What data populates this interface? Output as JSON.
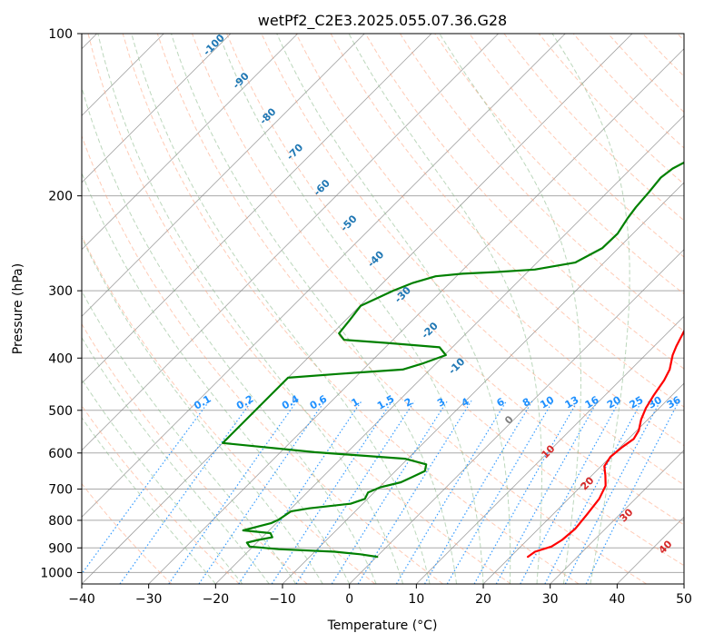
{
  "chart_data": {
    "type": "line",
    "title": "wetPf2_C2E3.2025.055.07.36.G28",
    "xlabel": "Temperature (°C)",
    "ylabel": "Pressure (hPa)",
    "xlim": [
      -40,
      50
    ],
    "ylim": [
      1050,
      100
    ],
    "y_scale": "log",
    "x_ticks": [
      "−40",
      "−30",
      "−20",
      "−10",
      "0",
      "10",
      "20",
      "30",
      "40",
      "50"
    ],
    "x_tick_values": [
      -40,
      -30,
      -20,
      -10,
      0,
      10,
      20,
      30,
      40,
      50
    ],
    "y_ticks": [
      "100",
      "200",
      "300",
      "400",
      "500",
      "600",
      "700",
      "800",
      "900",
      "1000"
    ],
    "y_tick_values": [
      100,
      200,
      300,
      400,
      500,
      600,
      700,
      800,
      900,
      1000
    ],
    "grid": true,
    "series": [
      {
        "role": "temperature",
        "color": "#ff0000",
        "points": [
          [
            22.6,
            935
          ],
          [
            22.9,
            915
          ],
          [
            24.6,
            895
          ],
          [
            25.2,
            870
          ],
          [
            25.5,
            830
          ],
          [
            25.1,
            780
          ],
          [
            24.6,
            730
          ],
          [
            23.6,
            690
          ],
          [
            22.0,
            660
          ],
          [
            20.5,
            635
          ],
          [
            20.0,
            610
          ],
          [
            20.3,
            585
          ],
          [
            20.8,
            565
          ],
          [
            20.3,
            545
          ],
          [
            19.0,
            520
          ],
          [
            18.0,
            495
          ],
          [
            17.3,
            470
          ],
          [
            16.6,
            440
          ],
          [
            15.8,
            420
          ],
          [
            14.1,
            395
          ],
          [
            13.3,
            380
          ],
          [
            11.9,
            350
          ],
          [
            10.9,
            320
          ],
          [
            9.7,
            295
          ],
          [
            7.6,
            275
          ],
          [
            5.7,
            255
          ],
          [
            3.6,
            235
          ],
          [
            3.3,
            215
          ],
          [
            3.3,
            190
          ],
          [
            3.8,
            160
          ],
          [
            4.5,
            135
          ],
          [
            5.6,
            120
          ],
          [
            6.2,
            108
          ],
          [
            7.0,
            100
          ]
        ]
      },
      {
        "role": "dewpoint",
        "color": "#008000",
        "points": [
          [
            0.1,
            935
          ],
          [
            -2.8,
            925
          ],
          [
            -7.0,
            915
          ],
          [
            -15.8,
            905
          ],
          [
            -20.5,
            895
          ],
          [
            -21.5,
            880
          ],
          [
            -20.2,
            870
          ],
          [
            -18.5,
            860
          ],
          [
            -19.4,
            845
          ],
          [
            -23.9,
            835
          ],
          [
            -22.1,
            820
          ],
          [
            -20.8,
            810
          ],
          [
            -20.2,
            798
          ],
          [
            -19.6,
            770
          ],
          [
            -17.3,
            760
          ],
          [
            -11.8,
            745
          ],
          [
            -10.4,
            730
          ],
          [
            -10.9,
            710
          ],
          [
            -9.9,
            695
          ],
          [
            -7.5,
            680
          ],
          [
            -6.6,
            665
          ],
          [
            -5.6,
            648
          ],
          [
            -6.4,
            630
          ],
          [
            -10.4,
            615
          ],
          [
            -24.9,
            598
          ],
          [
            -40.0,
            575
          ],
          [
            -40.0,
            435
          ],
          [
            -33.0,
            428
          ],
          [
            -24.1,
            420
          ],
          [
            -22.1,
            410
          ],
          [
            -19.8,
            395
          ],
          [
            -21.9,
            382
          ],
          [
            -30.4,
            375
          ],
          [
            -37.3,
            370
          ],
          [
            -39.0,
            360
          ],
          [
            -39.4,
            340
          ],
          [
            -39.9,
            320
          ],
          [
            -37.3,
            300
          ],
          [
            -35.5,
            290
          ],
          [
            -33.1,
            282
          ],
          [
            -29.5,
            279
          ],
          [
            -24.9,
            277
          ],
          [
            -19.3,
            274
          ],
          [
            -14.3,
            266
          ],
          [
            -12.4,
            250
          ],
          [
            -12.3,
            235
          ],
          [
            -13.1,
            220
          ],
          [
            -13.5,
            210
          ],
          [
            -13.8,
            197
          ],
          [
            -14.2,
            185
          ],
          [
            -13.8,
            178
          ],
          [
            -12.9,
            173
          ],
          [
            -10.1,
            165
          ],
          [
            -6.9,
            155
          ],
          [
            -5.0,
            145
          ],
          [
            -3.8,
            134
          ],
          [
            -2.8,
            125
          ],
          [
            -1.7,
            116
          ],
          [
            -0.1,
            107
          ],
          [
            1.5,
            100
          ]
        ]
      }
    ],
    "mixing_ratio_labels": [
      "0.1",
      "0.2",
      "0.4",
      "0.6",
      "1",
      "1.5",
      "2",
      "3",
      "4",
      "6",
      "8",
      "10",
      "13",
      "16",
      "20",
      "25",
      "30",
      "36"
    ],
    "dry_adiabat_labels": [
      "-100",
      "-90",
      "-80",
      "-70",
      "-60",
      "-50",
      "-40",
      "-30",
      "-20",
      "-10"
    ],
    "moist_adiabat_labels": [
      "0",
      "10",
      "20",
      "30",
      "40"
    ],
    "colors": {
      "temperature": "#ff0000",
      "dewpoint": "#008000",
      "isotherm": "#808080",
      "isobar": "#a9a9a9",
      "dry_adiabat": "#ffa07a",
      "moist_adiabat": "#8fbc8f",
      "mixing_ratio": "#1e90ff",
      "dry_label": "#1f77b4",
      "moist_label": "#d62728",
      "zero_label": "#808080"
    }
  }
}
